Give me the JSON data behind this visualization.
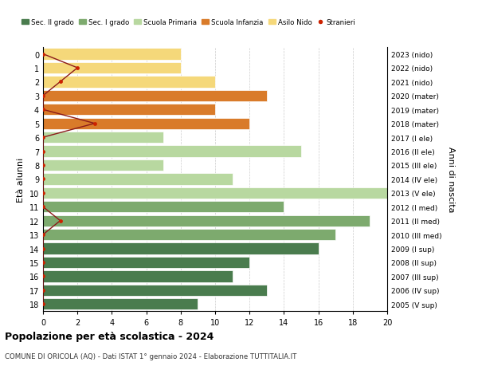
{
  "ages": [
    18,
    17,
    16,
    15,
    14,
    13,
    12,
    11,
    10,
    9,
    8,
    7,
    6,
    5,
    4,
    3,
    2,
    1,
    0
  ],
  "years": [
    "2005 (V sup)",
    "2006 (IV sup)",
    "2007 (III sup)",
    "2008 (II sup)",
    "2009 (I sup)",
    "2010 (III med)",
    "2011 (II med)",
    "2012 (I med)",
    "2013 (V ele)",
    "2014 (IV ele)",
    "2015 (III ele)",
    "2016 (II ele)",
    "2017 (I ele)",
    "2018 (mater)",
    "2019 (mater)",
    "2020 (mater)",
    "2021 (nido)",
    "2022 (nido)",
    "2023 (nido)"
  ],
  "bar_values": [
    9,
    13,
    11,
    12,
    16,
    17,
    19,
    14,
    20,
    11,
    7,
    15,
    7,
    12,
    10,
    13,
    10,
    8,
    8
  ],
  "bar_colors": [
    "#4a7c4e",
    "#4a7c4e",
    "#4a7c4e",
    "#4a7c4e",
    "#4a7c4e",
    "#7daa6e",
    "#7daa6e",
    "#7daa6e",
    "#b8d8a0",
    "#b8d8a0",
    "#b8d8a0",
    "#b8d8a0",
    "#b8d8a0",
    "#d97b2a",
    "#d97b2a",
    "#d97b2a",
    "#f5d87a",
    "#f5d87a",
    "#f5d87a"
  ],
  "stranieri_values": [
    0,
    0,
    0,
    0,
    0,
    0,
    1,
    0,
    0,
    0,
    0,
    0,
    0,
    3,
    0,
    0,
    1,
    2,
    0
  ],
  "legend_labels": [
    "Sec. II grado",
    "Sec. I grado",
    "Scuola Primaria",
    "Scuola Infanzia",
    "Asilo Nido",
    "Stranieri"
  ],
  "legend_colors": [
    "#4a7c4e",
    "#7daa6e",
    "#b8d8a0",
    "#d97b2a",
    "#f5d87a",
    "#cc2200"
  ],
  "title": "Popolazione per età scolastica - 2024",
  "subtitle": "COMUNE DI ORICOLA (AQ) - Dati ISTAT 1° gennaio 2024 - Elaborazione TUTTITALIA.IT",
  "ylabel_left": "Età alunni",
  "ylabel_right": "Anni di nascita",
  "xlim": [
    0,
    20
  ],
  "background_color": "#ffffff",
  "grid_color": "#cccccc"
}
